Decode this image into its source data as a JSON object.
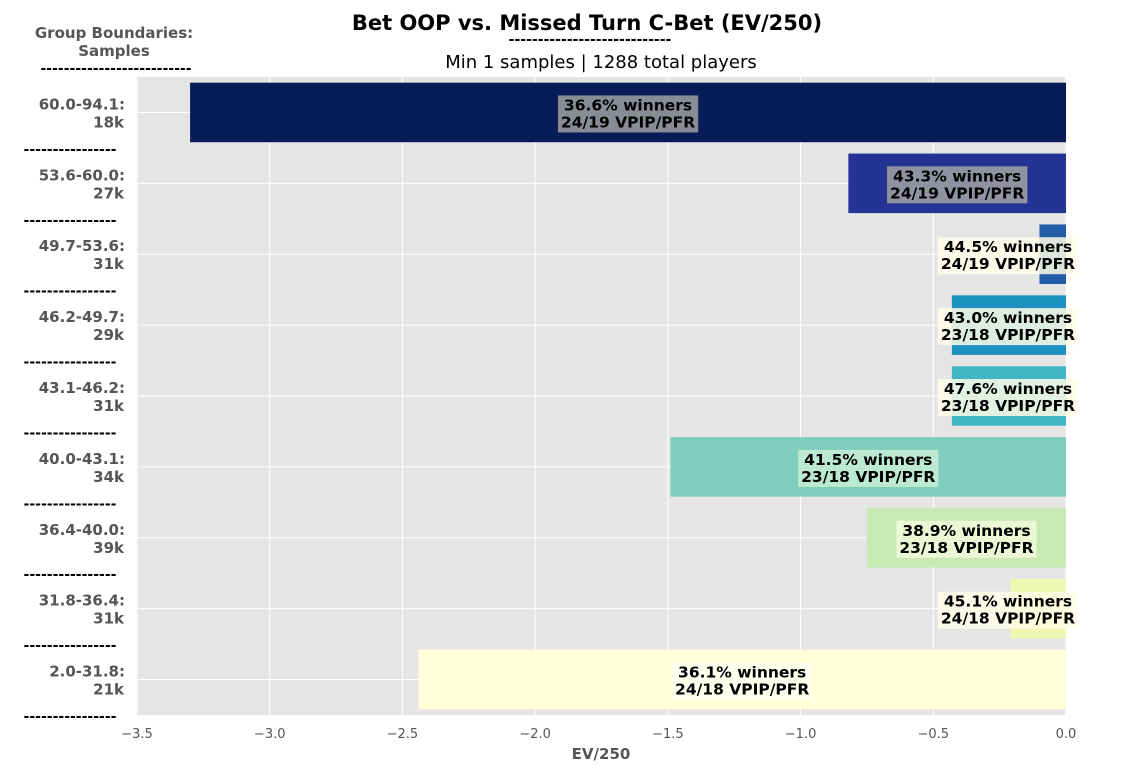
{
  "chart_data": {
    "type": "bar",
    "orientation": "horizontal",
    "title": "Bet OOP vs. Missed Turn C-Bet (EV/250)",
    "title_underline": "----------------------------",
    "subtitle": "Min 1 samples | 1288 total players",
    "group_header": [
      "Group Boundaries:",
      "Samples"
    ],
    "group_header_underline": "--------------------------",
    "row_separator": "----------------",
    "xlabel": "EV/250",
    "xlim": [
      -3.5,
      0.0
    ],
    "xticks": [
      -3.5,
      -3.0,
      -2.5,
      -2.0,
      -1.5,
      -1.0,
      -0.5,
      0.0
    ],
    "xtick_labels": [
      "−3.5",
      "−3.0",
      "−2.5",
      "−2.0",
      "−1.5",
      "−1.0",
      "−0.5",
      "0.0"
    ],
    "grid": true,
    "background": "#e5e5e5",
    "bars": [
      {
        "group": "60.0-94.1:",
        "samples": "18k",
        "value": -3.3,
        "winners": "36.6% winners",
        "vpip_pfr": "24/19 VPIP/PFR",
        "color": "#081d58",
        "label_box": "#a0a0a0"
      },
      {
        "group": "53.6-60.0:",
        "samples": "27k",
        "value": -0.82,
        "winners": "43.3% winners",
        "vpip_pfr": "24/19 VPIP/PFR",
        "color": "#253494",
        "label_box": "#a3a3a3"
      },
      {
        "group": "49.7-53.6:",
        "samples": "31k",
        "value": -0.1,
        "winners": "44.5% winners",
        "vpip_pfr": "24/19 VPIP/PFR",
        "color": "#225ea8",
        "label_box": "#fffde8"
      },
      {
        "group": "46.2-49.7:",
        "samples": "29k",
        "value": -0.43,
        "winners": "43.0% winners",
        "vpip_pfr": "23/18 VPIP/PFR",
        "color": "#1d91c0",
        "label_box": "#fffde8"
      },
      {
        "group": "43.1-46.2:",
        "samples": "31k",
        "value": -0.43,
        "winners": "47.6% winners",
        "vpip_pfr": "23/18 VPIP/PFR",
        "color": "#41b6c4",
        "label_box": "#fffde8"
      },
      {
        "group": "40.0-43.1:",
        "samples": "34k",
        "value": -1.49,
        "winners": "41.5% winners",
        "vpip_pfr": "23/18 VPIP/PFR",
        "color": "#7fcdbb",
        "label_box": "#c8ecd8"
      },
      {
        "group": "36.4-40.0:",
        "samples": "39k",
        "value": -0.75,
        "winners": "38.9% winners",
        "vpip_pfr": "23/18 VPIP/PFR",
        "color": "#c7e9b4",
        "label_box": "#f0fadc"
      },
      {
        "group": "31.8-36.4:",
        "samples": "31k",
        "value": -0.21,
        "winners": "45.1% winners",
        "vpip_pfr": "24/18 VPIP/PFR",
        "color": "#edf8b1",
        "label_box": "#fffde8"
      },
      {
        "group": "2.0-31.8:",
        "samples": "21k",
        "value": -2.44,
        "winners": "36.1% winners",
        "vpip_pfr": "24/18 VPIP/PFR",
        "color": "#ffffd9",
        "label_box": "#fffff0"
      }
    ]
  }
}
